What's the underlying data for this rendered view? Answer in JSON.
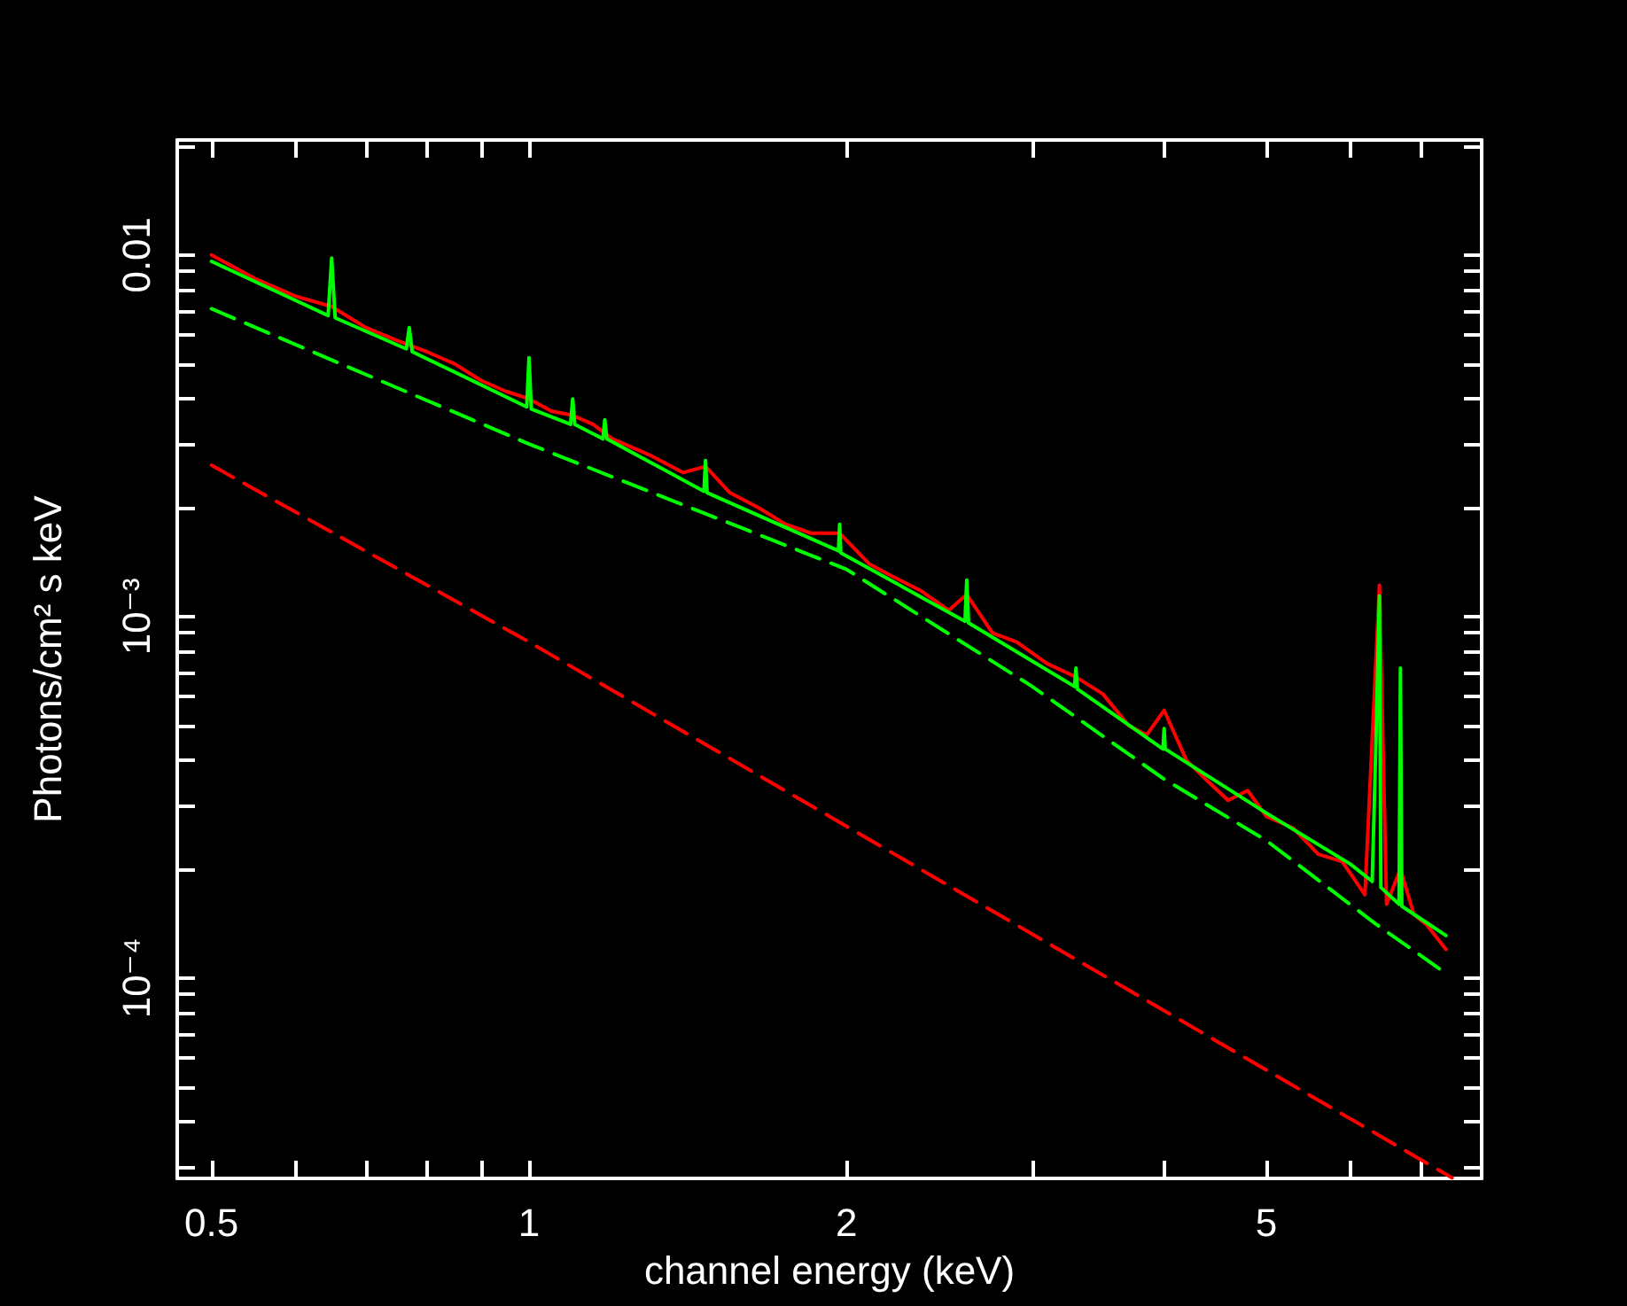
{
  "chart_data": {
    "type": "line",
    "xlabel": "channel energy (keV)",
    "ylabel": "Photons/cm² s keV",
    "log": "xy",
    "grid": false,
    "legend": false,
    "marker": "none",
    "xlim": [
      0.464,
      8.0
    ],
    "xticks": [
      0.5,
      {
        "value": 0.6,
        "label": null
      },
      {
        "value": 0.7,
        "label": null
      },
      {
        "value": 0.8,
        "label": null
      },
      {
        "value": 0.9,
        "label": null
      },
      1,
      2,
      {
        "value": 3,
        "label": null
      },
      {
        "value": 4,
        "label": null
      },
      5,
      {
        "value": 6,
        "label": null
      },
      {
        "value": 7,
        "label": null
      },
      {
        "value": 8,
        "label": null
      }
    ],
    "ylim": [
      2.79e-05,
      0.0208
    ],
    "yticks": [
      {
        "value": 3e-05,
        "label": null
      },
      {
        "value": 4e-05,
        "label": null
      },
      {
        "value": 5e-05,
        "label": null
      },
      {
        "value": 6e-05,
        "label": null
      },
      {
        "value": 7e-05,
        "label": null
      },
      {
        "value": 8e-05,
        "label": null
      },
      {
        "value": 9e-05,
        "label": null
      },
      {
        "value": 0.0001,
        "label": "10⁻⁴"
      },
      {
        "value": 0.0002,
        "label": null
      },
      {
        "value": 0.0003,
        "label": null
      },
      {
        "value": 0.0004,
        "label": null
      },
      {
        "value": 0.0005,
        "label": null
      },
      {
        "value": 0.0006,
        "label": null
      },
      {
        "value": 0.0007,
        "label": null
      },
      {
        "value": 0.0008,
        "label": null
      },
      {
        "value": 0.0009,
        "label": null
      },
      {
        "value": 0.001,
        "label": "10⁻³"
      },
      {
        "value": 0.002,
        "label": null
      },
      {
        "value": 0.003,
        "label": null
      },
      {
        "value": 0.004,
        "label": null
      },
      {
        "value": 0.005,
        "label": null
      },
      {
        "value": 0.006,
        "label": null
      },
      {
        "value": 0.007,
        "label": null
      },
      {
        "value": 0.008,
        "label": null
      },
      {
        "value": 0.009,
        "label": null
      },
      0.01,
      {
        "value": 0.02,
        "label": null
      }
    ],
    "series": [
      {
        "color": "#ff0000",
        "line_style": "solid",
        "x": [
          0.5,
          0.55,
          0.6,
          0.65,
          0.7,
          0.75,
          0.8,
          0.85,
          0.9,
          0.95,
          1.0,
          1.05,
          1.1,
          1.15,
          1.2,
          1.3,
          1.4,
          1.47,
          1.55,
          1.65,
          1.75,
          1.85,
          1.97,
          2.1,
          2.2,
          2.35,
          2.5,
          2.6,
          2.75,
          2.9,
          3.1,
          3.3,
          3.5,
          3.7,
          3.85,
          4.0,
          4.2,
          4.4,
          4.6,
          4.8,
          5.0,
          5.3,
          5.6,
          5.9,
          6.2,
          6.4,
          6.5,
          6.7,
          6.9,
          7.1,
          7.4
        ],
        "values": [
          0.01,
          0.0086,
          0.0077,
          0.0072,
          0.0063,
          0.0058,
          0.0054,
          0.005,
          0.0045,
          0.0042,
          0.004,
          0.0037,
          0.0036,
          0.0034,
          0.0031,
          0.0028,
          0.0025,
          0.0026,
          0.0022,
          0.002,
          0.0018,
          0.0017,
          0.0017,
          0.0014,
          0.0013,
          0.00118,
          0.00104,
          0.00115,
          0.0009,
          0.00085,
          0.00074,
          0.00068,
          0.00061,
          0.0005,
          0.00047,
          0.00055,
          0.0004,
          0.00035,
          0.00031,
          0.00033,
          0.00028,
          0.00026,
          0.00022,
          0.00021,
          0.00017,
          0.00122,
          0.00016,
          0.0002,
          0.00015,
          0.00014,
          0.00012
        ]
      },
      {
        "color": "#00ff00",
        "line_style": "solid",
        "x": [
          0.5,
          0.6,
          0.645,
          0.65,
          0.655,
          0.765,
          0.77,
          0.775,
          0.995,
          1.0,
          1.005,
          1.095,
          1.1,
          1.105,
          1.175,
          1.18,
          1.185,
          1.465,
          1.47,
          1.475,
          1.965,
          1.97,
          1.975,
          2.59,
          2.6,
          2.61,
          3.29,
          3.3,
          3.31,
          3.99,
          4.0,
          4.01,
          5.0,
          6.0,
          6.3,
          6.35,
          6.4,
          6.42,
          6.68,
          6.7,
          6.72,
          7.4
        ],
        "values": [
          0.0096,
          0.0075,
          0.0068,
          0.0098,
          0.0067,
          0.0055,
          0.0063,
          0.0054,
          0.0038,
          0.0052,
          0.00375,
          0.0034,
          0.004,
          0.0034,
          0.0031,
          0.0035,
          0.0031,
          0.00222,
          0.0027,
          0.0022,
          0.00152,
          0.0018,
          0.0015,
          0.00097,
          0.00126,
          0.00096,
          0.00064,
          0.00072,
          0.00063,
          0.00043,
          0.00049,
          0.00043,
          0.000286,
          0.000207,
          0.000185,
          0.00044,
          0.00114,
          0.000178,
          0.00016,
          0.00072,
          0.000158,
          0.000131
        ]
      },
      {
        "color": "#00ff00",
        "line_style": "dashed",
        "x": [
          0.5,
          1,
          2,
          3,
          4,
          5,
          6.35,
          7.4
        ],
        "values": [
          0.0071,
          0.003,
          0.00135,
          0.00064,
          0.000355,
          0.00024,
          0.000141,
          0.000103
        ]
      },
      {
        "color": "#ff0000",
        "line_style": "dashed",
        "x": [
          0.5,
          1,
          7.5
        ],
        "values": [
          0.00262,
          0.00085,
          2.8e-05
        ]
      }
    ]
  }
}
